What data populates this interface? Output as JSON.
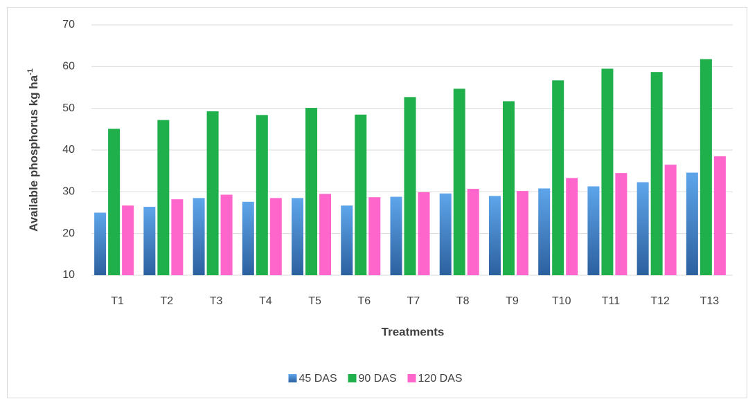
{
  "chart_data": {
    "type": "bar",
    "x_label": "Treatments",
    "y_label": {
      "text": "Available phosphorus kg ha",
      "superscript": "-1"
    },
    "categories": [
      "T1",
      "T2",
      "T3",
      "T4",
      "T5",
      "T6",
      "T7",
      "T8",
      "T9",
      "T10",
      "T11",
      "T12",
      "T13"
    ],
    "series": [
      {
        "name": "45 DAS",
        "color": "#5ea5ea",
        "gradient": "#2c609f",
        "values": [
          25.0,
          26.4,
          28.5,
          27.6,
          28.5,
          26.7,
          28.8,
          29.6,
          29.0,
          30.8,
          31.3,
          32.3,
          34.6
        ]
      },
      {
        "name": "90 DAS",
        "color": "#1fb04b",
        "values": [
          45.1,
          47.2,
          49.3,
          48.4,
          50.1,
          48.5,
          52.7,
          54.7,
          51.7,
          56.7,
          59.5,
          58.7,
          61.8
        ]
      },
      {
        "name": "120 DAS",
        "color": "#ff66cc",
        "values": [
          26.7,
          28.2,
          29.3,
          28.5,
          29.5,
          28.7,
          29.9,
          30.7,
          30.2,
          33.3,
          34.5,
          36.5,
          38.5
        ]
      }
    ],
    "ylim": [
      10,
      70
    ],
    "yticks": [
      10,
      20,
      30,
      40,
      50,
      60,
      70
    ],
    "grid": true,
    "legend": "bottom"
  }
}
